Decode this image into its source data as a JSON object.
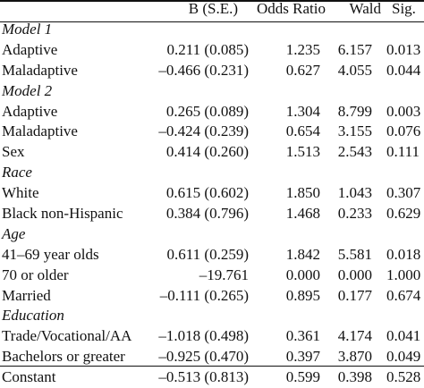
{
  "header": {
    "b": "B (S.E.)",
    "odds_ratio": "Odds Ratio",
    "wald": "Wald",
    "sig": "Sig."
  },
  "rows": [
    {
      "type": "section",
      "label": "Model 1"
    },
    {
      "type": "data",
      "label": "Adaptive",
      "b": "0.211 (0.085)",
      "or": "1.235",
      "wald": "6.157",
      "sig": "0.013"
    },
    {
      "type": "data",
      "label": "Maladaptive",
      "b": "–0.466 (0.231)",
      "or": "0.627",
      "wald": "4.055",
      "sig": "0.044"
    },
    {
      "type": "section",
      "label": "Model 2"
    },
    {
      "type": "data",
      "label": "Adaptive",
      "b": "0.265 (0.089)",
      "or": "1.304",
      "wald": "8.799",
      "sig": "0.003"
    },
    {
      "type": "data",
      "label": "Maladaptive",
      "b": "–0.424 (0.239)",
      "or": "0.654",
      "wald": "3.155",
      "sig": "0.076"
    },
    {
      "type": "data",
      "label": "Sex",
      "b": "0.414 (0.260)",
      "or": "1.513",
      "wald": "2.543",
      "sig": "0.111"
    },
    {
      "type": "section",
      "label": "Race"
    },
    {
      "type": "data",
      "label": "White",
      "b": "0.615 (0.602)",
      "or": "1.850",
      "wald": "1.043",
      "sig": "0.307"
    },
    {
      "type": "data",
      "label": "Black non-Hispanic",
      "b": "0.384 (0.796)",
      "or": "1.468",
      "wald": "0.233",
      "sig": "0.629"
    },
    {
      "type": "section",
      "label": "Age"
    },
    {
      "type": "data",
      "label": "41–69 year olds",
      "b": "0.611 (0.259)",
      "or": "1.842",
      "wald": "5.581",
      "sig": "0.018"
    },
    {
      "type": "data",
      "label": "70 or older",
      "b": "–19.761",
      "or": "0.000",
      "wald": "0.000",
      "sig": "1.000"
    },
    {
      "type": "data",
      "label": "Married",
      "b": "–0.111 (0.265)",
      "or": "0.895",
      "wald": "0.177",
      "sig": "0.674"
    },
    {
      "type": "section",
      "label": "Education"
    },
    {
      "type": "data",
      "label": "Trade/Vocational/AA",
      "b": "–1.018 (0.498)",
      "or": "0.361",
      "wald": "4.174",
      "sig": "0.041"
    },
    {
      "type": "data",
      "label": "Bachelors or greater",
      "b": "–0.925 (0.470)",
      "or": "0.397",
      "wald": "3.870",
      "sig": "0.049"
    },
    {
      "type": "data",
      "label": "Constant",
      "b": "–0.513 (0.813)",
      "or": "0.599",
      "wald": "0.398",
      "sig": "0.528"
    }
  ]
}
